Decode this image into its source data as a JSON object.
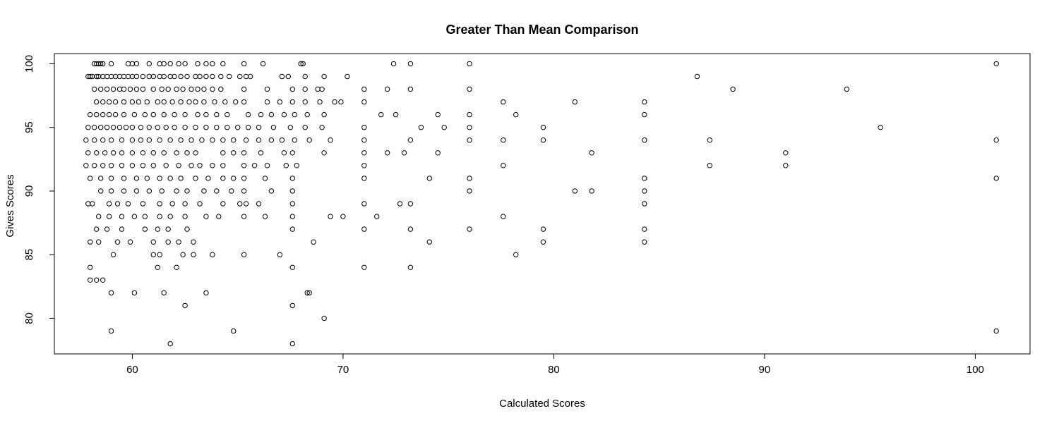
{
  "chart_data": {
    "type": "scatter",
    "title": "Greater Than Mean Comparison",
    "xlabel": "Calculated Scores",
    "ylabel": "Gives Scores",
    "xlim": [
      56.3,
      102.6
    ],
    "ylim": [
      77.2,
      100.8
    ],
    "xticks": [
      60,
      70,
      80,
      90,
      100
    ],
    "yticks": [
      80,
      85,
      90,
      95,
      100
    ],
    "marker": "open-circle",
    "grid": false,
    "legend": "none",
    "colors": {
      "points": "#000000",
      "background": "#ffffff"
    },
    "points": [
      [
        58.2,
        100
      ],
      [
        58.3,
        100
      ],
      [
        58.4,
        100
      ],
      [
        58.5,
        100
      ],
      [
        58.6,
        100
      ],
      [
        59.0,
        100
      ],
      [
        59.8,
        100
      ],
      [
        60.0,
        100
      ],
      [
        60.2,
        100
      ],
      [
        60.8,
        100
      ],
      [
        61.3,
        100
      ],
      [
        61.5,
        100
      ],
      [
        61.8,
        100
      ],
      [
        62.2,
        100
      ],
      [
        62.5,
        100
      ],
      [
        63.1,
        100
      ],
      [
        63.5,
        100
      ],
      [
        63.8,
        100
      ],
      [
        64.3,
        100
      ],
      [
        65.3,
        100
      ],
      [
        66.2,
        100
      ],
      [
        68.0,
        100
      ],
      [
        68.1,
        100
      ],
      [
        72.4,
        100
      ],
      [
        73.2,
        100
      ],
      [
        76.0,
        100
      ],
      [
        101.0,
        100
      ],
      [
        57.9,
        99
      ],
      [
        58.0,
        99
      ],
      [
        58.1,
        99
      ],
      [
        58.3,
        99
      ],
      [
        58.4,
        99
      ],
      [
        58.6,
        99
      ],
      [
        58.8,
        99
      ],
      [
        59.0,
        99
      ],
      [
        59.2,
        99
      ],
      [
        59.4,
        99
      ],
      [
        59.6,
        99
      ],
      [
        59.8,
        99
      ],
      [
        60.0,
        99
      ],
      [
        60.2,
        99
      ],
      [
        60.5,
        99
      ],
      [
        60.8,
        99
      ],
      [
        61.0,
        99
      ],
      [
        61.3,
        99
      ],
      [
        61.5,
        99
      ],
      [
        61.8,
        99
      ],
      [
        62.0,
        99
      ],
      [
        62.3,
        99
      ],
      [
        62.6,
        99
      ],
      [
        63.0,
        99
      ],
      [
        63.2,
        99
      ],
      [
        63.5,
        99
      ],
      [
        63.8,
        99
      ],
      [
        64.2,
        99
      ],
      [
        64.6,
        99
      ],
      [
        65.1,
        99
      ],
      [
        65.4,
        99
      ],
      [
        65.6,
        99
      ],
      [
        67.1,
        99
      ],
      [
        67.4,
        99
      ],
      [
        68.2,
        99
      ],
      [
        69.1,
        99
      ],
      [
        70.2,
        99
      ],
      [
        86.8,
        99
      ],
      [
        58.2,
        98
      ],
      [
        58.5,
        98
      ],
      [
        58.8,
        98
      ],
      [
        59.1,
        98
      ],
      [
        59.4,
        98
      ],
      [
        59.6,
        98
      ],
      [
        59.9,
        98
      ],
      [
        60.2,
        98
      ],
      [
        60.5,
        98
      ],
      [
        61.0,
        98
      ],
      [
        61.4,
        98
      ],
      [
        61.7,
        98
      ],
      [
        62.1,
        98
      ],
      [
        62.4,
        98
      ],
      [
        62.8,
        98
      ],
      [
        63.1,
        98
      ],
      [
        63.4,
        98
      ],
      [
        63.8,
        98
      ],
      [
        64.2,
        98
      ],
      [
        65.3,
        98
      ],
      [
        66.4,
        98
      ],
      [
        67.6,
        98
      ],
      [
        68.2,
        98
      ],
      [
        68.8,
        98
      ],
      [
        69.0,
        98
      ],
      [
        71.0,
        98
      ],
      [
        72.1,
        98
      ],
      [
        73.2,
        98
      ],
      [
        76.0,
        98
      ],
      [
        88.5,
        98
      ],
      [
        93.9,
        98
      ],
      [
        58.3,
        97
      ],
      [
        58.6,
        97
      ],
      [
        58.9,
        97
      ],
      [
        59.2,
        97
      ],
      [
        59.6,
        97
      ],
      [
        60.0,
        97
      ],
      [
        60.3,
        97
      ],
      [
        60.7,
        97
      ],
      [
        61.2,
        97
      ],
      [
        61.5,
        97
      ],
      [
        61.9,
        97
      ],
      [
        62.3,
        97
      ],
      [
        62.7,
        97
      ],
      [
        63.0,
        97
      ],
      [
        63.4,
        97
      ],
      [
        63.9,
        97
      ],
      [
        64.4,
        97
      ],
      [
        64.9,
        97
      ],
      [
        65.3,
        97
      ],
      [
        66.4,
        97
      ],
      [
        67.0,
        97
      ],
      [
        67.6,
        97
      ],
      [
        68.2,
        97
      ],
      [
        68.9,
        97
      ],
      [
        69.6,
        97
      ],
      [
        69.9,
        97
      ],
      [
        71.0,
        97
      ],
      [
        77.6,
        97
      ],
      [
        81.0,
        97
      ],
      [
        84.3,
        97
      ],
      [
        58.0,
        96
      ],
      [
        58.3,
        96
      ],
      [
        58.6,
        96
      ],
      [
        58.9,
        96
      ],
      [
        59.2,
        96
      ],
      [
        59.6,
        96
      ],
      [
        60.1,
        96
      ],
      [
        60.6,
        96
      ],
      [
        61.0,
        96
      ],
      [
        61.5,
        96
      ],
      [
        62.0,
        96
      ],
      [
        62.5,
        96
      ],
      [
        63.1,
        96
      ],
      [
        63.5,
        96
      ],
      [
        64.0,
        96
      ],
      [
        64.5,
        96
      ],
      [
        65.5,
        96
      ],
      [
        66.1,
        96
      ],
      [
        66.6,
        96
      ],
      [
        67.2,
        96
      ],
      [
        67.7,
        96
      ],
      [
        68.3,
        96
      ],
      [
        69.1,
        96
      ],
      [
        71.8,
        96
      ],
      [
        72.5,
        96
      ],
      [
        74.5,
        96
      ],
      [
        76.0,
        96
      ],
      [
        78.2,
        96
      ],
      [
        84.3,
        96
      ],
      [
        57.9,
        95
      ],
      [
        58.2,
        95
      ],
      [
        58.5,
        95
      ],
      [
        58.8,
        95
      ],
      [
        59.1,
        95
      ],
      [
        59.4,
        95
      ],
      [
        59.7,
        95
      ],
      [
        60.0,
        95
      ],
      [
        60.4,
        95
      ],
      [
        60.8,
        95
      ],
      [
        61.2,
        95
      ],
      [
        61.6,
        95
      ],
      [
        62.0,
        95
      ],
      [
        62.5,
        95
      ],
      [
        63.0,
        95
      ],
      [
        63.5,
        95
      ],
      [
        64.0,
        95
      ],
      [
        64.5,
        95
      ],
      [
        65.0,
        95
      ],
      [
        65.5,
        95
      ],
      [
        66.0,
        95
      ],
      [
        66.7,
        95
      ],
      [
        67.5,
        95
      ],
      [
        68.2,
        95
      ],
      [
        69.0,
        95
      ],
      [
        71.0,
        95
      ],
      [
        73.7,
        95
      ],
      [
        74.8,
        95
      ],
      [
        76.0,
        95
      ],
      [
        79.5,
        95
      ],
      [
        95.5,
        95
      ],
      [
        57.8,
        94
      ],
      [
        58.2,
        94
      ],
      [
        58.6,
        94
      ],
      [
        59.0,
        94
      ],
      [
        59.5,
        94
      ],
      [
        60.0,
        94
      ],
      [
        60.4,
        94
      ],
      [
        60.8,
        94
      ],
      [
        61.3,
        94
      ],
      [
        61.8,
        94
      ],
      [
        62.3,
        94
      ],
      [
        62.8,
        94
      ],
      [
        63.3,
        94
      ],
      [
        63.8,
        94
      ],
      [
        64.3,
        94
      ],
      [
        64.8,
        94
      ],
      [
        65.4,
        94
      ],
      [
        66.0,
        94
      ],
      [
        66.6,
        94
      ],
      [
        67.1,
        94
      ],
      [
        67.7,
        94
      ],
      [
        68.4,
        94
      ],
      [
        69.4,
        94
      ],
      [
        71.0,
        94
      ],
      [
        73.2,
        94
      ],
      [
        76.0,
        94
      ],
      [
        77.6,
        94
      ],
      [
        79.5,
        94
      ],
      [
        84.3,
        94
      ],
      [
        87.4,
        94
      ],
      [
        101.0,
        94
      ],
      [
        57.9,
        93
      ],
      [
        58.3,
        93
      ],
      [
        58.7,
        93
      ],
      [
        59.1,
        93
      ],
      [
        59.5,
        93
      ],
      [
        60.0,
        93
      ],
      [
        60.5,
        93
      ],
      [
        61.0,
        93
      ],
      [
        61.5,
        93
      ],
      [
        62.1,
        93
      ],
      [
        62.6,
        93
      ],
      [
        63.0,
        93
      ],
      [
        64.3,
        93
      ],
      [
        64.8,
        93
      ],
      [
        65.3,
        93
      ],
      [
        66.1,
        93
      ],
      [
        67.2,
        93
      ],
      [
        67.6,
        93
      ],
      [
        69.1,
        93
      ],
      [
        71.0,
        93
      ],
      [
        72.1,
        93
      ],
      [
        72.9,
        93
      ],
      [
        74.5,
        93
      ],
      [
        81.8,
        93
      ],
      [
        91.0,
        93
      ],
      [
        57.8,
        92
      ],
      [
        58.2,
        92
      ],
      [
        58.6,
        92
      ],
      [
        59.0,
        92
      ],
      [
        59.5,
        92
      ],
      [
        60.0,
        92
      ],
      [
        60.5,
        92
      ],
      [
        61.0,
        92
      ],
      [
        61.6,
        92
      ],
      [
        62.2,
        92
      ],
      [
        62.8,
        92
      ],
      [
        63.2,
        92
      ],
      [
        63.8,
        92
      ],
      [
        64.3,
        92
      ],
      [
        65.3,
        92
      ],
      [
        65.8,
        92
      ],
      [
        66.4,
        92
      ],
      [
        67.3,
        92
      ],
      [
        67.8,
        92
      ],
      [
        71.0,
        92
      ],
      [
        77.6,
        92
      ],
      [
        87.4,
        92
      ],
      [
        91.0,
        92
      ],
      [
        58.0,
        91
      ],
      [
        58.5,
        91
      ],
      [
        59.0,
        91
      ],
      [
        59.6,
        91
      ],
      [
        60.2,
        91
      ],
      [
        60.7,
        91
      ],
      [
        61.3,
        91
      ],
      [
        61.8,
        91
      ],
      [
        62.3,
        91
      ],
      [
        63.0,
        91
      ],
      [
        63.6,
        91
      ],
      [
        64.3,
        91
      ],
      [
        64.8,
        91
      ],
      [
        65.3,
        91
      ],
      [
        66.3,
        91
      ],
      [
        67.6,
        91
      ],
      [
        71.0,
        91
      ],
      [
        74.1,
        91
      ],
      [
        76.0,
        91
      ],
      [
        84.3,
        91
      ],
      [
        101.0,
        91
      ],
      [
        58.5,
        90
      ],
      [
        59.0,
        90
      ],
      [
        59.6,
        90
      ],
      [
        60.2,
        90
      ],
      [
        60.8,
        90
      ],
      [
        61.4,
        90
      ],
      [
        62.1,
        90
      ],
      [
        62.6,
        90
      ],
      [
        63.4,
        90
      ],
      [
        64.0,
        90
      ],
      [
        64.7,
        90
      ],
      [
        65.3,
        90
      ],
      [
        66.6,
        90
      ],
      [
        67.6,
        90
      ],
      [
        76.0,
        90
      ],
      [
        81.0,
        90
      ],
      [
        81.8,
        90
      ],
      [
        84.3,
        90
      ],
      [
        57.9,
        89
      ],
      [
        58.1,
        89
      ],
      [
        58.9,
        89
      ],
      [
        59.3,
        89
      ],
      [
        59.8,
        89
      ],
      [
        60.5,
        89
      ],
      [
        61.3,
        89
      ],
      [
        61.9,
        89
      ],
      [
        62.5,
        89
      ],
      [
        63.2,
        89
      ],
      [
        64.3,
        89
      ],
      [
        65.1,
        89
      ],
      [
        65.4,
        89
      ],
      [
        66.0,
        89
      ],
      [
        67.6,
        89
      ],
      [
        71.0,
        89
      ],
      [
        72.7,
        89
      ],
      [
        73.2,
        89
      ],
      [
        84.3,
        89
      ],
      [
        58.4,
        88
      ],
      [
        58.9,
        88
      ],
      [
        59.5,
        88
      ],
      [
        60.1,
        88
      ],
      [
        60.6,
        88
      ],
      [
        61.3,
        88
      ],
      [
        61.8,
        88
      ],
      [
        62.5,
        88
      ],
      [
        63.5,
        88
      ],
      [
        64.1,
        88
      ],
      [
        65.3,
        88
      ],
      [
        66.3,
        88
      ],
      [
        67.6,
        88
      ],
      [
        69.4,
        88
      ],
      [
        70.0,
        88
      ],
      [
        71.6,
        88
      ],
      [
        77.6,
        88
      ],
      [
        58.3,
        87
      ],
      [
        58.8,
        87
      ],
      [
        59.5,
        87
      ],
      [
        60.6,
        87
      ],
      [
        61.2,
        87
      ],
      [
        61.7,
        87
      ],
      [
        62.6,
        87
      ],
      [
        67.6,
        87
      ],
      [
        71.0,
        87
      ],
      [
        73.2,
        87
      ],
      [
        76.0,
        87
      ],
      [
        79.5,
        87
      ],
      [
        84.3,
        87
      ],
      [
        58.0,
        86
      ],
      [
        58.4,
        86
      ],
      [
        59.3,
        86
      ],
      [
        59.9,
        86
      ],
      [
        61.0,
        86
      ],
      [
        61.7,
        86
      ],
      [
        62.2,
        86
      ],
      [
        62.9,
        86
      ],
      [
        68.6,
        86
      ],
      [
        74.1,
        86
      ],
      [
        79.5,
        86
      ],
      [
        84.3,
        86
      ],
      [
        59.1,
        85
      ],
      [
        61.0,
        85
      ],
      [
        61.3,
        85
      ],
      [
        62.4,
        85
      ],
      [
        62.9,
        85
      ],
      [
        63.8,
        85
      ],
      [
        65.3,
        85
      ],
      [
        67.0,
        85
      ],
      [
        78.2,
        85
      ],
      [
        58.0,
        84
      ],
      [
        61.2,
        84
      ],
      [
        62.1,
        84
      ],
      [
        67.6,
        84
      ],
      [
        71.0,
        84
      ],
      [
        73.2,
        84
      ],
      [
        58.0,
        83
      ],
      [
        58.3,
        83
      ],
      [
        58.6,
        83
      ],
      [
        59.0,
        82
      ],
      [
        60.1,
        82
      ],
      [
        61.5,
        82
      ],
      [
        63.5,
        82
      ],
      [
        68.3,
        82
      ],
      [
        68.4,
        82
      ],
      [
        62.5,
        81
      ],
      [
        67.6,
        81
      ],
      [
        69.1,
        80
      ],
      [
        59.0,
        79
      ],
      [
        64.8,
        79
      ],
      [
        101.0,
        79
      ],
      [
        61.8,
        78
      ],
      [
        67.6,
        78
      ]
    ]
  }
}
